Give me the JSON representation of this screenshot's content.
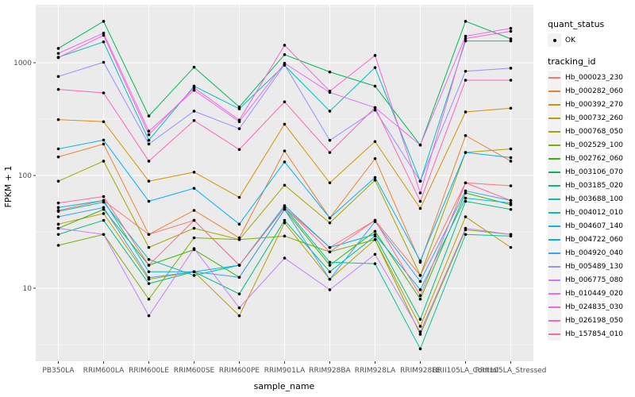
{
  "legend": {
    "quant_status": {
      "title": "quant_status",
      "items": [
        {
          "label": "OK",
          "key": "black-point"
        }
      ]
    },
    "tracking_id": {
      "title": "tracking_id"
    }
  },
  "chart_data": {
    "type": "line",
    "title": "",
    "xlabel": "sample_name",
    "ylabel": "FPKM + 1",
    "y_scale": "log10",
    "ylim": [
      2.5,
      2600
    ],
    "y_major_ticks": [
      10,
      100,
      1000
    ],
    "y_minor_ticks": [
      3.162,
      31.62,
      316.2,
      3162
    ],
    "grid": "on",
    "panel_bg": "#EBEBEB",
    "grid_color": "#FFFFFF",
    "tick_text_color": "#4D4D4D",
    "point_color": "#000000",
    "legend_position": "right",
    "categories": [
      "PB350LA",
      "RRIM600LA",
      "RRIM600LE",
      "RRIM600SE",
      "RRIM600PE",
      "RRIM901LA",
      "RRIM928BA",
      "RRIM928LA",
      "RRIM928LE",
      "RRII105LA_Control",
      "RRII105LA_Stressed"
    ],
    "series": [
      {
        "name": "Hb_000023_230",
        "color": "#F8766D",
        "values": [
          49,
          60,
          30,
          40,
          16,
          52,
          23,
          40,
          13,
          86,
          81
        ]
      },
      {
        "name": "Hb_000282_060",
        "color": "#EA8331",
        "values": [
          146,
          190,
          30,
          49,
          28,
          165,
          42,
          141,
          17,
          226,
          134
        ]
      },
      {
        "name": "Hb_000392_270",
        "color": "#D89000",
        "values": [
          313,
          300,
          89,
          107,
          64,
          285,
          86,
          200,
          51,
          366,
          395
        ]
      },
      {
        "name": "Hb_000732_260",
        "color": "#C09B00",
        "values": [
          37,
          46,
          12,
          14,
          5.7,
          38,
          12,
          27,
          4.6,
          43,
          23
        ]
      },
      {
        "name": "Hb_000768_050",
        "color": "#A3A500",
        "values": [
          89,
          134,
          23,
          34,
          27,
          82,
          38,
          91,
          13,
          160,
          172
        ]
      },
      {
        "name": "Hb_002529_100",
        "color": "#7CAE00",
        "values": [
          24,
          30,
          8,
          28,
          27,
          29,
          21,
          27,
          3.9,
          33,
          30
        ]
      },
      {
        "name": "Hb_002762_060",
        "color": "#39B600",
        "values": [
          34,
          50,
          16,
          22,
          12.5,
          50,
          16,
          32,
          8,
          70,
          55
        ]
      },
      {
        "name": "Hb_003106_070",
        "color": "#00BB4E",
        "values": [
          1340,
          2330,
          337,
          912,
          405,
          1180,
          828,
          620,
          186,
          2330,
          1630
        ]
      },
      {
        "name": "Hb_003185_020",
        "color": "#00BF7D",
        "values": [
          30,
          40,
          11,
          14,
          8.9,
          40,
          14,
          29,
          5.3,
          59,
          50
        ]
      },
      {
        "name": "Hb_003688_100",
        "color": "#00C1A3",
        "values": [
          48,
          58,
          18,
          13,
          16,
          52,
          17,
          16.5,
          2.9,
          30,
          29
        ]
      },
      {
        "name": "Hb_004012_010",
        "color": "#00BFC4",
        "values": [
          1120,
          1530,
          205,
          620,
          390,
          950,
          372,
          905,
          89,
          1560,
          1560
        ]
      },
      {
        "name": "Hb_004607_140",
        "color": "#00BAE0",
        "values": [
          52,
          60,
          14,
          14,
          16,
          54,
          23,
          30,
          9.7,
          63,
          57
        ]
      },
      {
        "name": "Hb_004722_060",
        "color": "#00B0F6",
        "values": [
          172,
          206,
          59,
          77,
          37,
          132,
          42,
          96,
          17.5,
          160,
          144
        ]
      },
      {
        "name": "Hb_004920_040",
        "color": "#35A2FF",
        "values": [
          43,
          52,
          12.4,
          14,
          12.5,
          50,
          12,
          39,
          11.5,
          73,
          60
        ]
      },
      {
        "name": "Hb_005489_130",
        "color": "#9590FF",
        "values": [
          755,
          1010,
          190,
          372,
          260,
          960,
          205,
          380,
          89,
          840,
          895
        ]
      },
      {
        "name": "Hb_006775_080",
        "color": "#C77CFF",
        "values": [
          34,
          30,
          5.7,
          22.5,
          6.7,
          18.5,
          9.7,
          20,
          4.1,
          34,
          30
        ]
      },
      {
        "name": "Hb_010449_020",
        "color": "#E76BF3",
        "values": [
          1210,
          1830,
          247,
          570,
          300,
          990,
          545,
          400,
          186,
          1720,
          2020
        ]
      },
      {
        "name": "Hb_024835_030",
        "color": "#FA62DB",
        "values": [
          1110,
          1750,
          230,
          600,
          310,
          1430,
          560,
          1160,
          70,
          1640,
          1900
        ]
      },
      {
        "name": "Hb_026198_050",
        "color": "#FF62BC",
        "values": [
          580,
          540,
          134,
          307,
          170,
          450,
          160,
          400,
          59,
          700,
          700
        ]
      },
      {
        "name": "Hb_157854_010",
        "color": "#FF6A98",
        "values": [
          57,
          65,
          16,
          40,
          16,
          52,
          21,
          40,
          8.6,
          86,
          60
        ]
      }
    ]
  }
}
